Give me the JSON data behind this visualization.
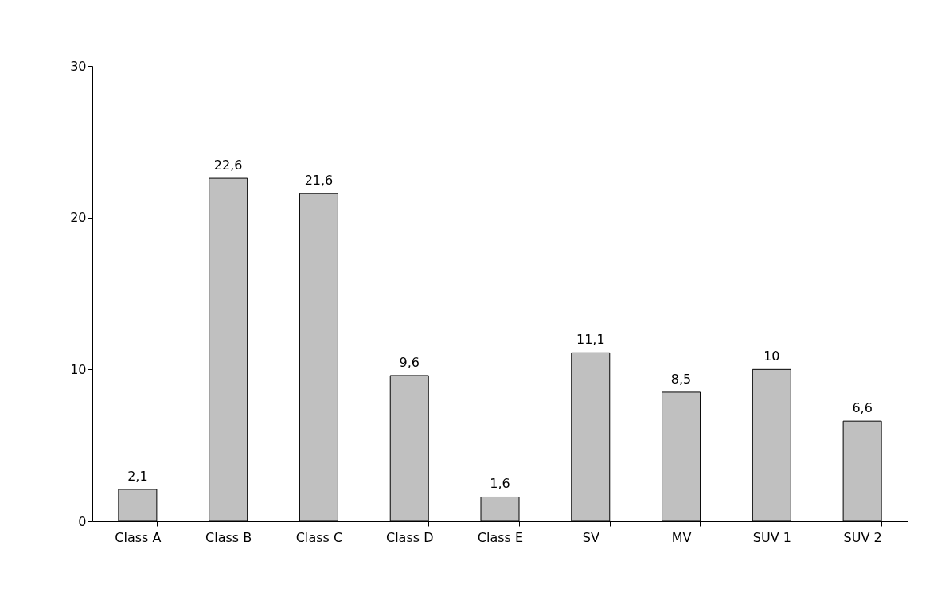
{
  "chart_data": {
    "type": "bar",
    "categories": [
      "Class A",
      "Class B",
      "Class C",
      "Class D",
      "Class E",
      "SV",
      "MV",
      "SUV 1",
      "SUV 2"
    ],
    "values": [
      2.1,
      22.6,
      21.6,
      9.6,
      1.6,
      11.1,
      8.5,
      10,
      6.6
    ],
    "value_labels": [
      "2,1",
      "22,6",
      "21,6",
      "9,6",
      "1,6",
      "11,1",
      "8,5",
      "10",
      "6,6"
    ],
    "color": "#c0c0c0",
    "ylim": [
      0,
      30
    ],
    "yticks": [
      0,
      10,
      20,
      30
    ],
    "grid": false
  }
}
